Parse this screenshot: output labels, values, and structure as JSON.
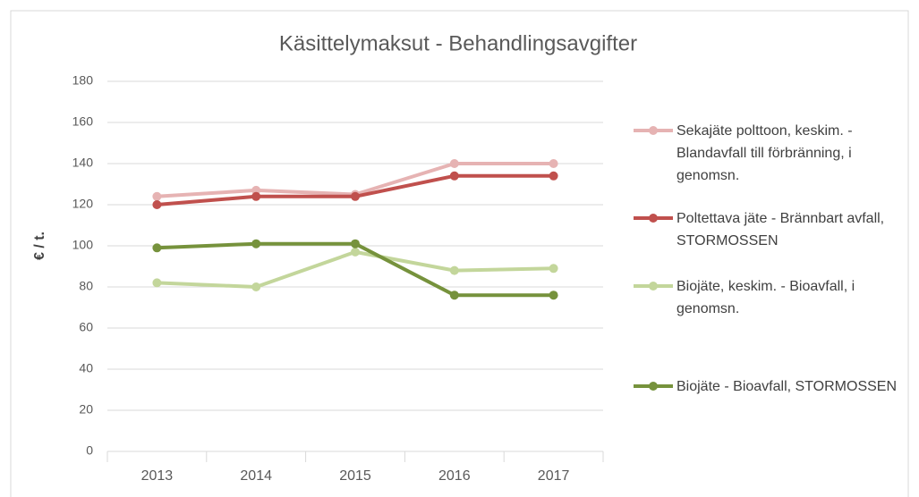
{
  "chart_data": {
    "type": "line",
    "title": "Käsittelymaksut - Behandlingsavgifter",
    "y_label": "€ / t.",
    "categories": [
      "2013",
      "2014",
      "2015",
      "2016",
      "2017"
    ],
    "series": [
      {
        "name": "Sekajäte polttoon, keskim. - Blandavfall till förbränning, i genomsn.",
        "color": "#e6b3b3",
        "values": [
          124,
          127,
          125,
          140,
          140
        ]
      },
      {
        "name": "Poltettava jäte - Brännbart avfall, STORMOSSEN",
        "color": "#c0504d",
        "values": [
          120,
          124,
          124,
          134,
          134
        ]
      },
      {
        "name": "Biojäte, keskim. - Bioavfall, i genomsn.",
        "color": "#c3d69b",
        "values": [
          82,
          80,
          97,
          88,
          89
        ]
      },
      {
        "name": "Biojäte - Bioavfall, STORMOSSEN",
        "color": "#76923c",
        "values": [
          99,
          101,
          101,
          76,
          76
        ]
      }
    ],
    "ylim": [
      0,
      180
    ],
    "yticks": [
      0,
      20,
      40,
      60,
      80,
      100,
      120,
      140,
      160,
      180
    ],
    "grid": true
  }
}
